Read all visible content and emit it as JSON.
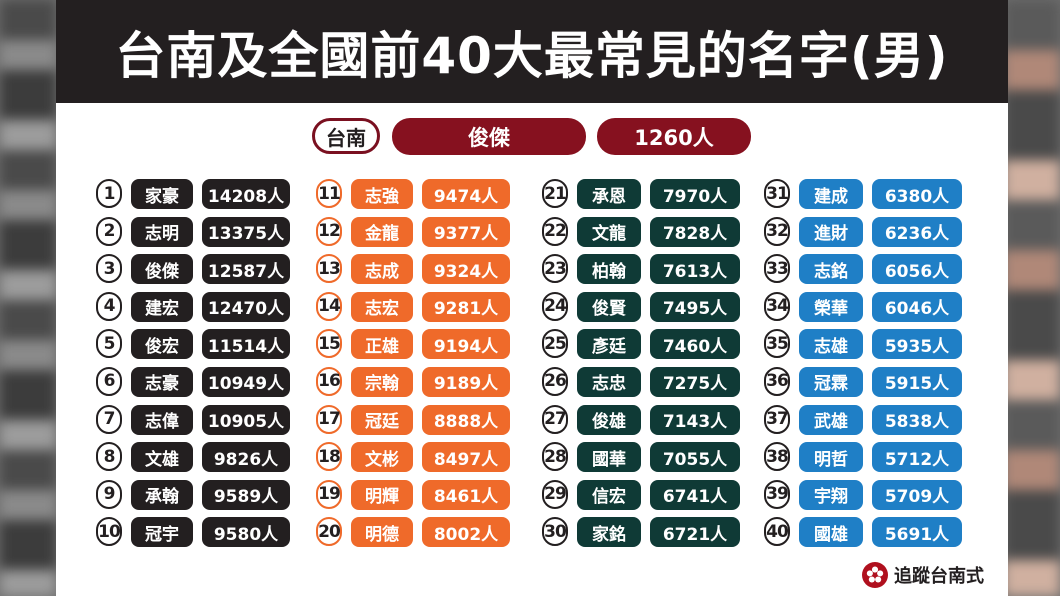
{
  "title": "台南及全國前40大最常見的名字(男)",
  "summary": {
    "city": "台南",
    "top_name": "俊傑",
    "top_count": "1260人"
  },
  "columns": [
    {
      "color": "black",
      "rows": [
        {
          "rank": "1",
          "name": "家豪",
          "count": "14208人"
        },
        {
          "rank": "2",
          "name": "志明",
          "count": "13375人"
        },
        {
          "rank": "3",
          "name": "俊傑",
          "count": "12587人"
        },
        {
          "rank": "4",
          "name": "建宏",
          "count": "12470人"
        },
        {
          "rank": "5",
          "name": "俊宏",
          "count": "11514人"
        },
        {
          "rank": "6",
          "name": "志豪",
          "count": "10949人"
        },
        {
          "rank": "7",
          "name": "志偉",
          "count": "10905人"
        },
        {
          "rank": "8",
          "name": "文雄",
          "count": "9826人"
        },
        {
          "rank": "9",
          "name": "承翰",
          "count": "9589人"
        },
        {
          "rank": "10",
          "name": "冠宇",
          "count": "9580人"
        }
      ]
    },
    {
      "color": "orange",
      "rows": [
        {
          "rank": "11",
          "name": "志強",
          "count": "9474人"
        },
        {
          "rank": "12",
          "name": "金龍",
          "count": "9377人"
        },
        {
          "rank": "13",
          "name": "志成",
          "count": "9324人"
        },
        {
          "rank": "14",
          "name": "志宏",
          "count": "9281人"
        },
        {
          "rank": "15",
          "name": "正雄",
          "count": "9194人"
        },
        {
          "rank": "16",
          "name": "宗翰",
          "count": "9189人"
        },
        {
          "rank": "17",
          "name": "冠廷",
          "count": "8888人"
        },
        {
          "rank": "18",
          "name": "文彬",
          "count": "8497人"
        },
        {
          "rank": "19",
          "name": "明輝",
          "count": "8461人"
        },
        {
          "rank": "20",
          "name": "明德",
          "count": "8002人"
        }
      ]
    },
    {
      "color": "green",
      "rows": [
        {
          "rank": "21",
          "name": "承恩",
          "count": "7970人"
        },
        {
          "rank": "22",
          "name": "文龍",
          "count": "7828人"
        },
        {
          "rank": "23",
          "name": "柏翰",
          "count": "7613人"
        },
        {
          "rank": "24",
          "name": "俊賢",
          "count": "7495人"
        },
        {
          "rank": "25",
          "name": "彥廷",
          "count": "7460人"
        },
        {
          "rank": "26",
          "name": "志忠",
          "count": "7275人"
        },
        {
          "rank": "27",
          "name": "俊雄",
          "count": "7143人"
        },
        {
          "rank": "28",
          "name": "國華",
          "count": "7055人"
        },
        {
          "rank": "29",
          "name": "信宏",
          "count": "6741人"
        },
        {
          "rank": "30",
          "name": "家銘",
          "count": "6721人"
        }
      ]
    },
    {
      "color": "blue",
      "rows": [
        {
          "rank": "31",
          "name": "建成",
          "count": "6380人"
        },
        {
          "rank": "32",
          "name": "進財",
          "count": "6236人"
        },
        {
          "rank": "33",
          "name": "志銘",
          "count": "6056人"
        },
        {
          "rank": "34",
          "name": "榮華",
          "count": "6046人"
        },
        {
          "rank": "35",
          "name": "志雄",
          "count": "5935人"
        },
        {
          "rank": "36",
          "name": "冠霖",
          "count": "5915人"
        },
        {
          "rank": "37",
          "name": "武雄",
          "count": "5838人"
        },
        {
          "rank": "38",
          "name": "明哲",
          "count": "5712人"
        },
        {
          "rank": "39",
          "name": "宇翔",
          "count": "5709人"
        },
        {
          "rank": "40",
          "name": "國雄",
          "count": "5691人"
        }
      ]
    }
  ],
  "brand": {
    "text": "追蹤台南式",
    "logo_icon": "plum-blossom-icon"
  },
  "colors": {
    "black": "#231f20",
    "orange": "#ef6a2a",
    "green": "#0f3a36",
    "blue": "#1f7fc6",
    "maroon": "#86111f"
  }
}
